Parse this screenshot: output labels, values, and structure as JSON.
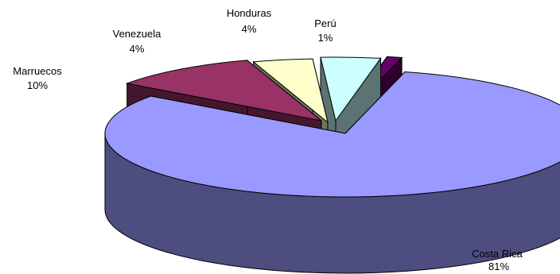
{
  "chart_data": {
    "type": "pie",
    "style": "3d-exploded",
    "slices": [
      {
        "name": "Costa Rica",
        "value": 81,
        "label": "81%",
        "color": "#9999FF"
      },
      {
        "name": "Marruecos",
        "value": 10,
        "label": "10%",
        "color": "#993366"
      },
      {
        "name": "Venezuela",
        "value": 4,
        "label": "4%",
        "color": "#FFFFCC"
      },
      {
        "name": "Honduras",
        "value": 4,
        "label": "4%",
        "color": "#CCFFFF"
      },
      {
        "name": "Perú",
        "value": 1,
        "label": "1%",
        "color": "#660066"
      }
    ],
    "legend": "none"
  }
}
